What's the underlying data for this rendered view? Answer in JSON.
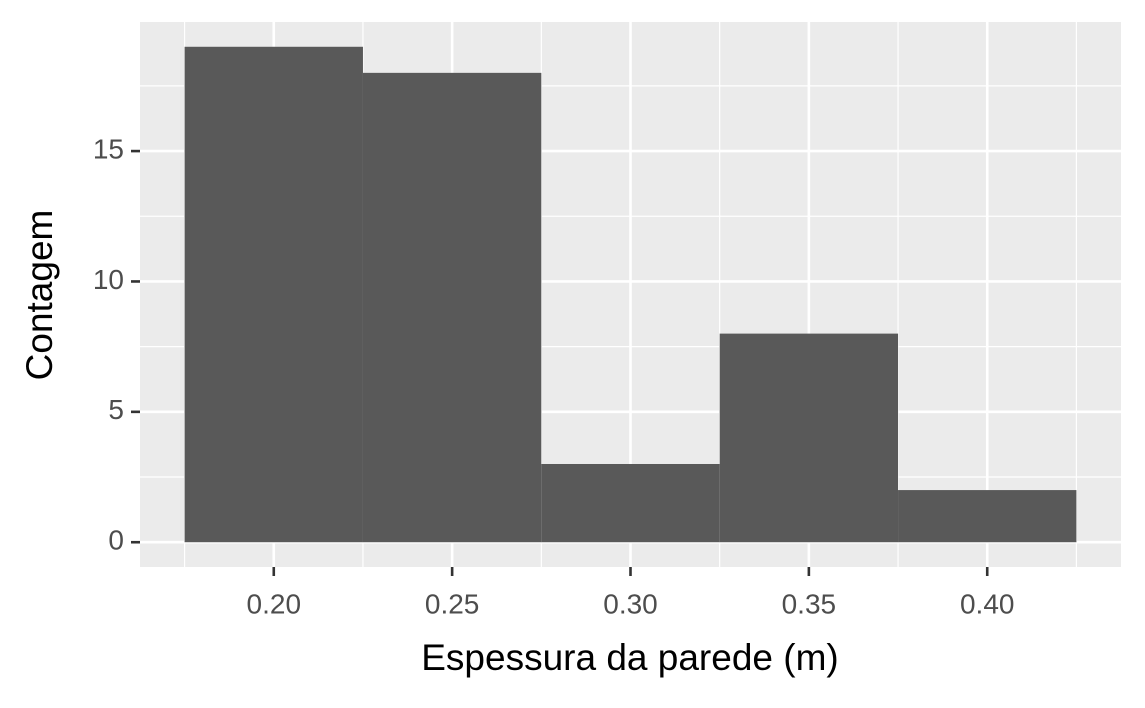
{
  "chart_data": {
    "type": "histogram",
    "x_label": "Espessura da parede (m)",
    "y_label": "Contagem",
    "bins": [
      0.175,
      0.225,
      0.275,
      0.325,
      0.375,
      0.425
    ],
    "values": [
      19,
      18,
      3,
      8,
      2
    ],
    "color": "#595959",
    "xlim": [
      0.1625,
      0.4375
    ],
    "xticks": [
      {
        "value": 0.2,
        "label": "0.20"
      },
      {
        "value": 0.25,
        "label": "0.25"
      },
      {
        "value": 0.3,
        "label": "0.30"
      },
      {
        "value": 0.35,
        "label": "0.35"
      },
      {
        "value": 0.4,
        "label": "0.40"
      }
    ],
    "ylim": [
      -0.95,
      19.95
    ],
    "yticks": [
      0,
      5,
      10,
      15
    ],
    "grid": true
  }
}
